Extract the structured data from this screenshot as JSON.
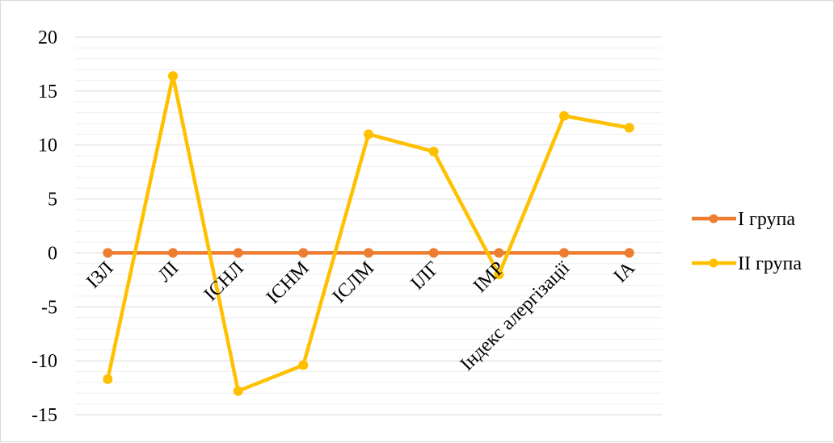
{
  "chart_data": {
    "type": "line",
    "title": "",
    "xlabel": "",
    "ylabel": "",
    "categories": [
      "ІЗЛ",
      "ЛІ",
      "ІСНЛ",
      "ІСНМ",
      "ІСЛМ",
      "ІЛГ",
      "ІМР",
      "Індекс алергізації",
      "ІА"
    ],
    "series": [
      {
        "name": "І група",
        "color": "#ED7D31",
        "values": [
          0,
          0,
          0,
          0,
          0,
          0,
          0,
          0,
          0
        ]
      },
      {
        "name": "ІІ група",
        "color": "#FFC000",
        "values": [
          -11.7,
          16.4,
          -12.8,
          -10.4,
          11.0,
          9.4,
          -2.0,
          12.7,
          11.6
        ]
      }
    ],
    "ylim": [
      -15,
      20
    ],
    "yticks": [
      20,
      15,
      10,
      5,
      0,
      -5,
      -10,
      -15
    ],
    "grid": true,
    "legend_position": "right"
  }
}
